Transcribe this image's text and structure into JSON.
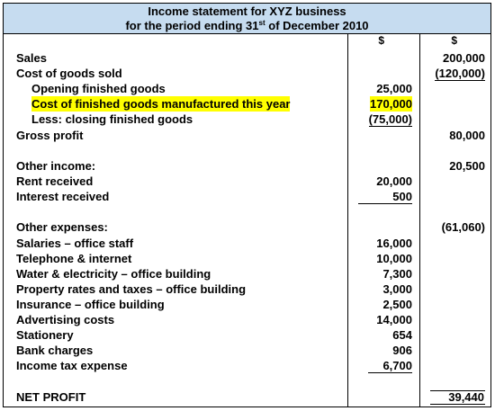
{
  "title_line1": "Income statement for XYZ business",
  "title_line2_pre": "for the period ending 31",
  "title_line2_sup": "st",
  "title_line2_post": " of December 2010",
  "col1_header": "$",
  "col2_header": "$",
  "lines": {
    "sales": {
      "label": "Sales",
      "c2": "200,000"
    },
    "cogs": {
      "label": "Cost of goods sold",
      "c2": "(120,000)"
    },
    "opening": {
      "label": "Opening finished goods",
      "c1": "25,000"
    },
    "manufactured": {
      "label": "Cost of finished goods manufactured this year",
      "c1": "170,000",
      "highlight_color": "#ffff00"
    },
    "closing": {
      "label": "Less: closing finished goods",
      "c1": "(75,000)"
    },
    "gross": {
      "label": "Gross profit",
      "c2": "80,000"
    },
    "other_income": {
      "label": "Other income:",
      "c2": "20,500"
    },
    "rent": {
      "label": "Rent received",
      "c1": "20,000"
    },
    "interest": {
      "label": "Interest received",
      "c1": "500"
    },
    "other_expenses": {
      "label": "Other expenses:",
      "c2": "(61,060)"
    },
    "salaries": {
      "label": "Salaries – office staff",
      "c1": "16,000"
    },
    "telephone": {
      "label": "Telephone & internet",
      "c1": "10,000"
    },
    "water": {
      "label": "Water & electricity – office building",
      "c1": "7,300"
    },
    "property": {
      "label": "Property rates and taxes – office building",
      "c1": "3,000"
    },
    "insurance": {
      "label": "Insurance – office building",
      "c1": "2,500"
    },
    "advertising": {
      "label": "Advertising costs",
      "c1": "14,000"
    },
    "stationery": {
      "label": "Stationery",
      "c1": "654"
    },
    "bank": {
      "label": "Bank charges",
      "c1": "906"
    },
    "tax": {
      "label": "Income tax expense",
      "c1": "6,700"
    },
    "net": {
      "label": "NET PROFIT",
      "c2": "39,440"
    }
  },
  "colors": {
    "header_bg": "#c6dcf0",
    "highlight": "#ffff00"
  }
}
